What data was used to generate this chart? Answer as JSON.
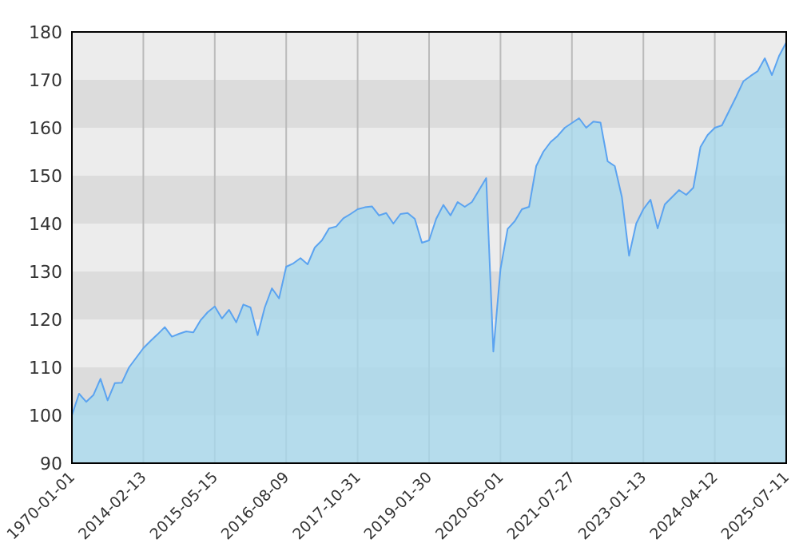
{
  "chart_data": {
    "type": "area",
    "grid": true,
    "ylim": [
      90,
      180
    ],
    "yticks": [
      90,
      100,
      110,
      120,
      130,
      140,
      150,
      160,
      170,
      180
    ],
    "categories": [
      "1970-01-01",
      null,
      null,
      null,
      null,
      null,
      null,
      null,
      null,
      null,
      "2014-02-13",
      null,
      null,
      null,
      null,
      null,
      null,
      null,
      null,
      null,
      "2015-05-15",
      null,
      null,
      null,
      null,
      null,
      null,
      null,
      null,
      null,
      "2016-08-09",
      null,
      null,
      null,
      null,
      null,
      null,
      null,
      null,
      null,
      "2017-10-31",
      null,
      null,
      null,
      null,
      null,
      null,
      null,
      null,
      null,
      "2019-01-30",
      null,
      null,
      null,
      null,
      null,
      null,
      null,
      null,
      null,
      "2020-05-01",
      null,
      null,
      null,
      null,
      null,
      null,
      null,
      null,
      null,
      "2021-07-27",
      null,
      null,
      null,
      null,
      null,
      null,
      null,
      null,
      null,
      "2023-01-13",
      null,
      null,
      null,
      null,
      null,
      null,
      null,
      null,
      null,
      "2024-04-12",
      null,
      null,
      null,
      null,
      null,
      null,
      null,
      null,
      null,
      "2025-07-11"
    ],
    "series": [
      {
        "color": "#5ba3f0",
        "values": [
          100,
          104.5,
          102.8,
          104.2,
          107.6,
          103.1,
          106.7,
          106.8,
          110,
          112,
          114,
          115.5,
          116.9,
          118.4,
          116.4,
          117,
          117.5,
          117.3,
          119.8,
          121.5,
          122.7,
          120.2,
          122,
          119.4,
          123.1,
          122.5,
          116.7,
          122.5,
          126.5,
          124.4,
          131,
          131.7,
          132.8,
          131.5,
          135,
          136.5,
          139,
          139.4,
          141.1,
          142,
          143,
          143.4,
          143.6,
          141.7,
          142.2,
          140,
          142,
          142.2,
          141,
          136,
          136.5,
          141,
          143.9,
          141.7,
          144.5,
          143.5,
          144.5,
          147,
          149.5,
          113.3,
          130.5,
          138.9,
          140.5,
          143,
          143.5,
          152,
          155,
          157,
          158.3,
          160,
          161,
          162,
          160,
          161.3,
          161.1,
          153,
          152,
          145.5,
          133.3,
          140,
          143,
          145,
          139,
          144,
          145.5,
          147,
          146,
          147.5,
          156,
          158.5,
          160,
          160.5,
          163.5,
          166.5,
          169.7,
          170.8,
          171.8,
          174.5,
          171,
          175,
          177.8
        ]
      }
    ]
  }
}
